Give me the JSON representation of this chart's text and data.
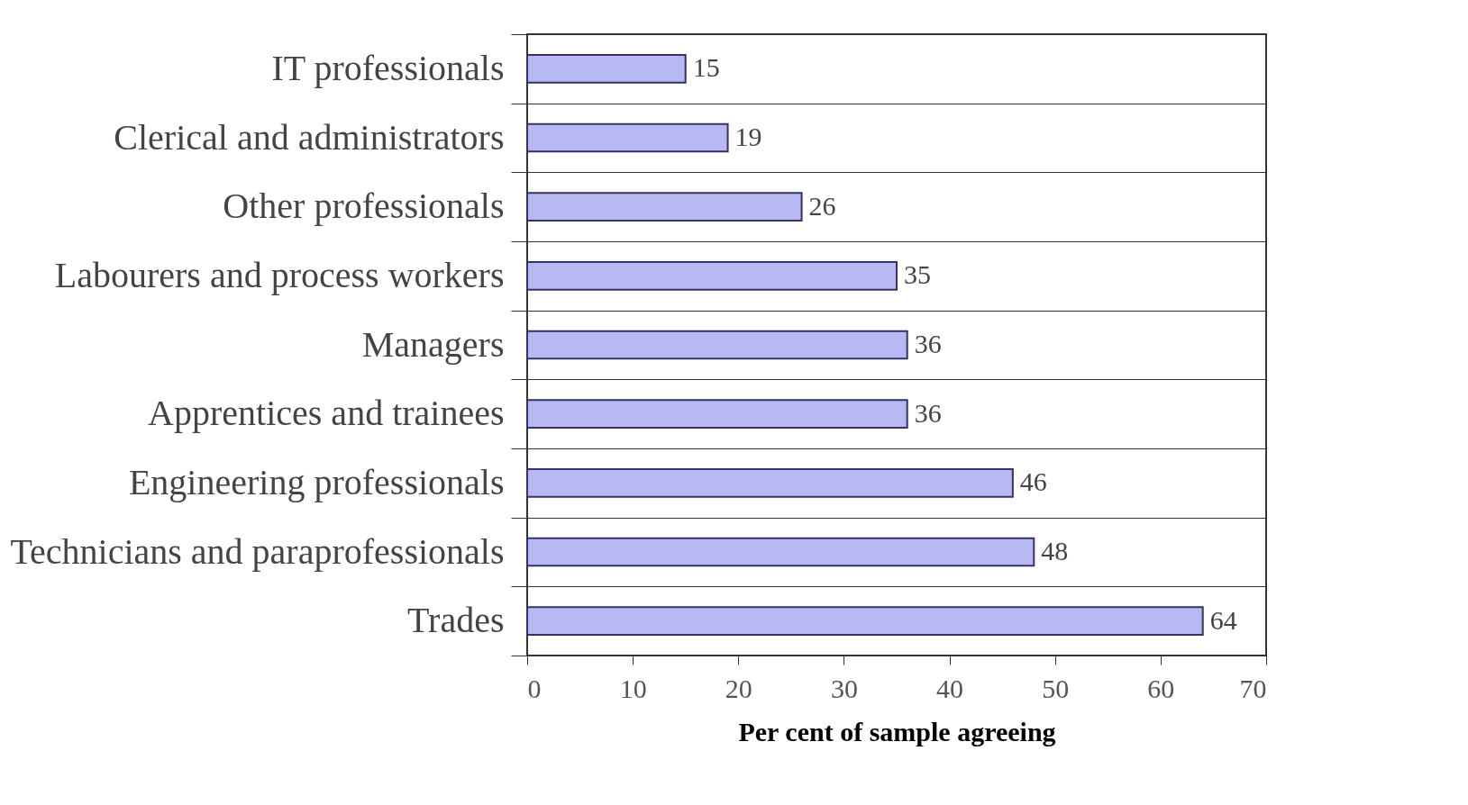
{
  "chart_data": {
    "type": "bar",
    "orientation": "horizontal",
    "xlabel": "Per cent of sample agreeing",
    "categories": [
      "IT professionals",
      "Clerical and administrators",
      "Other professionals",
      "Labourers and process workers",
      "Managers",
      "Apprentices and trainees",
      "Engineering professionals",
      "Technicians and paraprofessionals",
      "Trades"
    ],
    "values": [
      15,
      19,
      26,
      35,
      36,
      36,
      46,
      48,
      64
    ],
    "color": "#b8b8f2",
    "xlim": [
      0,
      70
    ],
    "xticks": [
      0,
      10,
      20,
      30,
      40,
      50,
      60,
      70
    ],
    "grid": "y",
    "data_labels": true
  }
}
